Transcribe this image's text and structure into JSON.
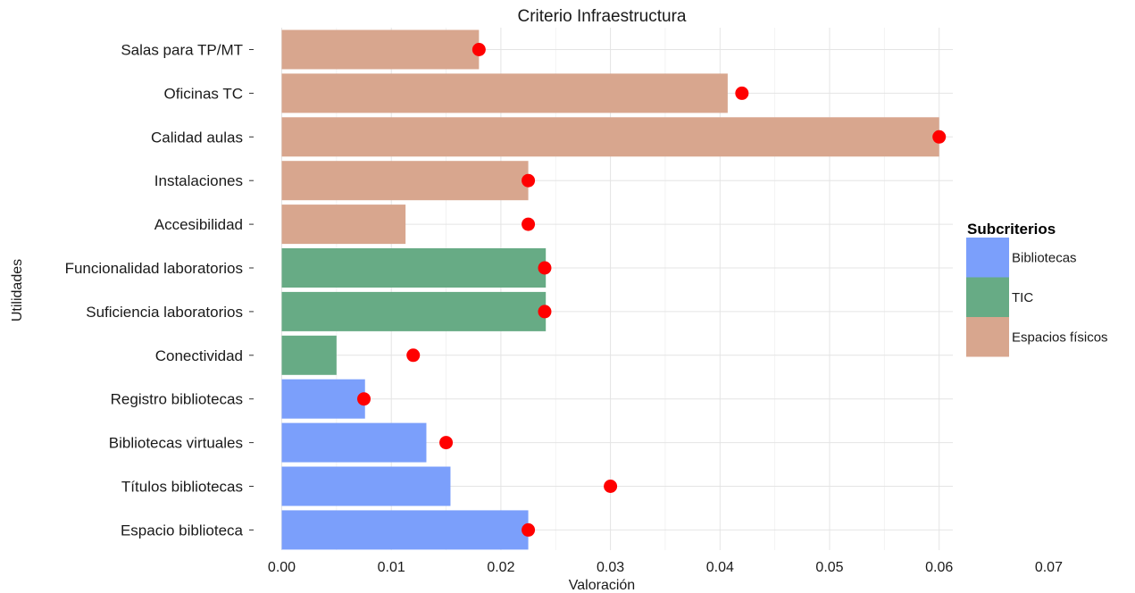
{
  "chart_data": {
    "type": "bar",
    "orientation": "horizontal",
    "title": "Criterio Infraestructura",
    "xlabel": "Valoración",
    "ylabel": "Utilidades",
    "xlim": [
      0,
      0.0735
    ],
    "x_ticks": [
      "0.00",
      "0.01",
      "0.02",
      "0.03",
      "0.04",
      "0.05",
      "0.06",
      "0.07"
    ],
    "grid": true,
    "legend": {
      "title": "Subcriterios",
      "position": "right",
      "entries": [
        {
          "label": "Bibliotecas",
          "color": "#7b9ffb"
        },
        {
          "label": "TIC",
          "color": "#67ab85"
        },
        {
          "label": "Espacios físicos",
          "color": "#d8a68e"
        }
      ]
    },
    "point_color": "#ff0000",
    "categories": [
      "Salas para TP/MT",
      "Oficinas TC",
      "Calidad aulas",
      "Instalaciones",
      "Accesibilidad",
      "Funcionalidad laboratorios",
      "Suficiencia laboratorios",
      "Conectividad",
      "Registro bibliotecas",
      "Bibliotecas virtuales",
      "Títulos bibliotecas",
      "Espacio biblioteca"
    ],
    "groups": [
      "Espacios físicos",
      "Espacios físicos",
      "Espacios físicos",
      "Espacios físicos",
      "Espacios físicos",
      "TIC",
      "TIC",
      "TIC",
      "Bibliotecas",
      "Bibliotecas",
      "Bibliotecas",
      "Bibliotecas"
    ],
    "bar_values": [
      0.018,
      0.0407,
      0.06,
      0.0225,
      0.0113,
      0.0241,
      0.0241,
      0.005,
      0.0076,
      0.0132,
      0.0154,
      0.0225
    ],
    "point_values": [
      0.018,
      0.042,
      0.06,
      0.0225,
      0.0225,
      0.024,
      0.024,
      0.012,
      0.0075,
      0.015,
      0.03,
      0.0225
    ]
  }
}
